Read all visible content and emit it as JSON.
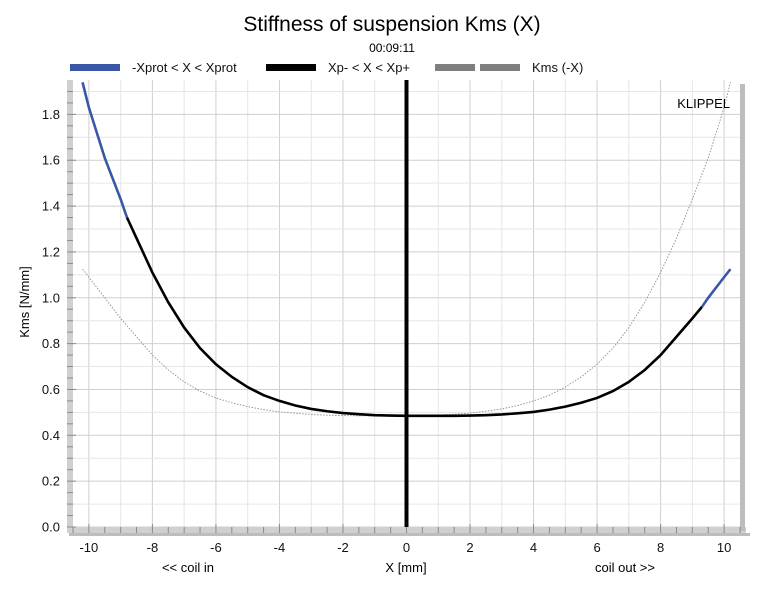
{
  "chart_data": {
    "type": "line",
    "title": "Stiffness of suspension Kms (X)",
    "subtitle": "00:09:11",
    "xlabel": "X [mm]",
    "ylabel": "Kms [N/mm]",
    "x_left_annotation": "<< coil in",
    "x_right_annotation": "coil out >>",
    "watermark": "KLIPPEL",
    "xlim": [
      -10.5,
      10.5
    ],
    "ylim": [
      0,
      1.95
    ],
    "x_ticks": [
      -10,
      -8,
      -6,
      -4,
      -2,
      0,
      2,
      4,
      6,
      8,
      10
    ],
    "y_ticks": [
      0.0,
      0.2,
      0.4,
      0.6,
      0.8,
      1.0,
      1.2,
      1.4,
      1.6,
      1.8
    ],
    "y_tick_labels": [
      "0.0",
      "0.2",
      "0.4",
      "0.6",
      "0.8",
      "1.0",
      "1.2",
      "1.4",
      "1.6",
      "1.8"
    ],
    "grid": true,
    "legend_position": "top",
    "legend": [
      {
        "label": "-Xprot < X < Xprot",
        "color": "#3a56a6",
        "style": "solid"
      },
      {
        "label": "Xp- < X < Xp+",
        "color": "#000000",
        "style": "solid"
      },
      {
        "label": "Kms (-X)",
        "color": "#7f7f7f",
        "style": "dashed"
      }
    ],
    "vertical_marker_x": 0,
    "xprot_range": [
      -8.8,
      9.3
    ],
    "series": [
      {
        "name": "Kms (X)",
        "x": [
          -10.2,
          -10,
          -9.5,
          -9,
          -8.8,
          -8.5,
          -8,
          -7.5,
          -7,
          -6.5,
          -6,
          -5.5,
          -5,
          -4.5,
          -4,
          -3.5,
          -3,
          -2.5,
          -2,
          -1.5,
          -1,
          -0.5,
          0,
          0.5,
          1,
          1.5,
          2,
          2.5,
          3,
          3.5,
          4,
          4.5,
          5,
          5.5,
          6,
          6.5,
          7,
          7.5,
          8,
          8.5,
          9,
          9.3,
          9.5,
          10,
          10.2
        ],
        "y": [
          1.94,
          1.83,
          1.61,
          1.43,
          1.35,
          1.26,
          1.11,
          0.98,
          0.87,
          0.78,
          0.71,
          0.655,
          0.61,
          0.575,
          0.55,
          0.53,
          0.515,
          0.505,
          0.497,
          0.492,
          0.488,
          0.486,
          0.485,
          0.485,
          0.485,
          0.485,
          0.486,
          0.488,
          0.491,
          0.496,
          0.502,
          0.512,
          0.525,
          0.542,
          0.563,
          0.593,
          0.633,
          0.685,
          0.75,
          0.83,
          0.91,
          0.96,
          1.0,
          1.09,
          1.125
        ]
      },
      {
        "name": "Kms (-X)",
        "x": [
          -10.2,
          -10,
          -9.5,
          -9,
          -8.5,
          -8,
          -7.5,
          -7,
          -6.5,
          -6,
          -5.5,
          -5,
          -4.5,
          -4,
          -3.5,
          -3,
          -2.5,
          -2,
          -1.5,
          -1,
          -0.5,
          0,
          0.5,
          1,
          1.5,
          2,
          2.5,
          3,
          3.5,
          4,
          4.5,
          5,
          5.5,
          6,
          6.5,
          7,
          7.5,
          8,
          8.5,
          9,
          9.5,
          10,
          10.2
        ],
        "y": [
          1.125,
          1.09,
          1.0,
          0.91,
          0.83,
          0.75,
          0.685,
          0.633,
          0.593,
          0.563,
          0.542,
          0.525,
          0.512,
          0.502,
          0.496,
          0.491,
          0.488,
          0.486,
          0.485,
          0.485,
          0.485,
          0.485,
          0.486,
          0.488,
          0.492,
          0.497,
          0.505,
          0.515,
          0.53,
          0.55,
          0.575,
          0.61,
          0.655,
          0.71,
          0.78,
          0.87,
          0.98,
          1.11,
          1.26,
          1.43,
          1.61,
          1.83,
          1.94
        ]
      }
    ]
  }
}
